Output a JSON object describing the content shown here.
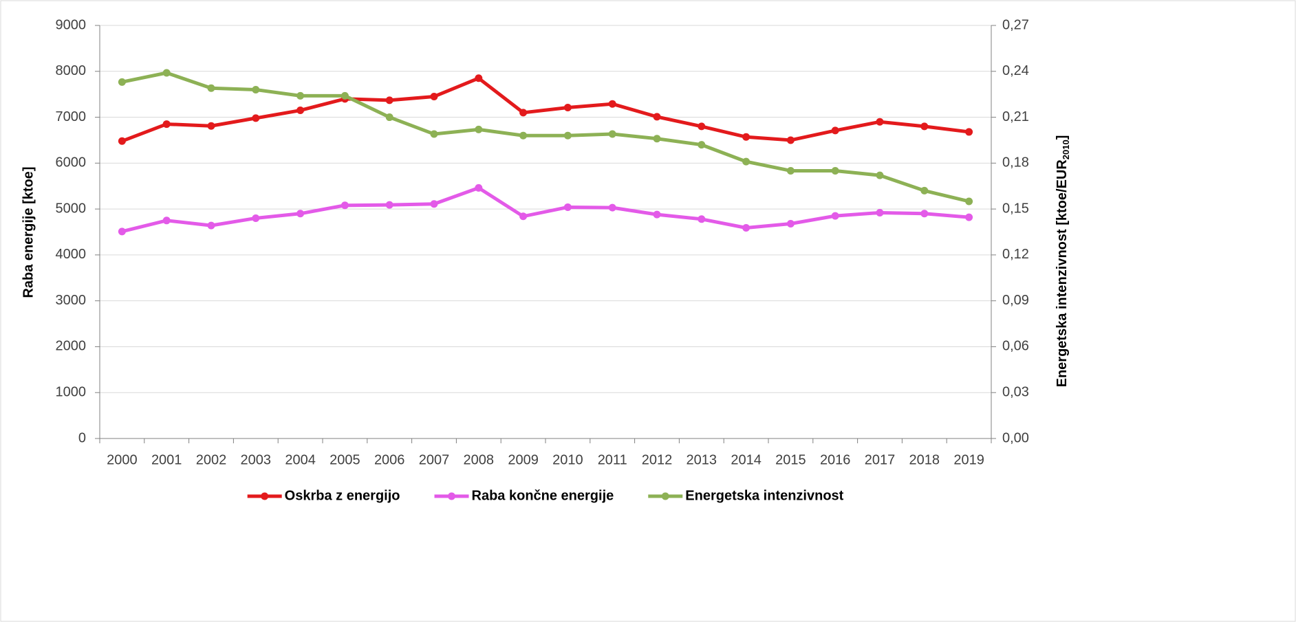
{
  "chart_data": {
    "type": "line",
    "categories": [
      "2000",
      "2001",
      "2002",
      "2003",
      "2004",
      "2005",
      "2006",
      "2007",
      "2008",
      "2009",
      "2010",
      "2011",
      "2012",
      "2013",
      "2014",
      "2015",
      "2016",
      "2017",
      "2018",
      "2019"
    ],
    "y_label": "Raba energije [ktoe]",
    "y2_label": [
      "Energetska  intenzivnost [ktoe/EUR",
      "2010",
      "]"
    ],
    "ylim": [
      0,
      9000
    ],
    "yticks": [
      0,
      1000,
      2000,
      3000,
      4000,
      5000,
      6000,
      7000,
      8000,
      9000
    ],
    "y2lim": [
      0,
      0.27
    ],
    "y2ticks": [
      {
        "value": 0,
        "label": "0,00"
      },
      {
        "value": 0.03,
        "label": "0,03"
      },
      {
        "value": 0.06,
        "label": "0,06"
      },
      {
        "value": 0.09,
        "label": "0,09"
      },
      {
        "value": 0.12,
        "label": "0,12"
      },
      {
        "value": 0.15,
        "label": "0,15"
      },
      {
        "value": 0.18,
        "label": "0,18"
      },
      {
        "value": 0.21,
        "label": "0,21"
      },
      {
        "value": 0.24,
        "label": "0,24"
      },
      {
        "value": 0.27,
        "label": "0,27"
      }
    ],
    "grid": true,
    "legend": "bottom",
    "series": [
      {
        "name": "Oskrba z energijo",
        "color": "#e31a1c",
        "values": [
          6480,
          6850,
          6810,
          6980,
          7150,
          7400,
          7370,
          7450,
          7850,
          7100,
          7210,
          7290,
          7010,
          6800,
          6570,
          6500,
          6710,
          6900,
          6800,
          6680
        ]
      },
      {
        "name": "Raba končne energije",
        "color": "#e35ae8",
        "values": [
          4510,
          4750,
          4640,
          4800,
          4900,
          5080,
          5090,
          5110,
          5460,
          4840,
          5040,
          5030,
          4880,
          4780,
          4590,
          4680,
          4850,
          4920,
          4900,
          4820
        ]
      },
      {
        "name": "Energetska intenzivnost",
        "color": "#8db155",
        "axis": "y2",
        "values": [
          0.233,
          0.239,
          0.229,
          0.228,
          0.224,
          0.224,
          0.21,
          0.199,
          0.202,
          0.198,
          0.198,
          0.199,
          0.196,
          0.192,
          0.181,
          0.175,
          0.175,
          0.172,
          0.162,
          0.155
        ]
      }
    ]
  }
}
